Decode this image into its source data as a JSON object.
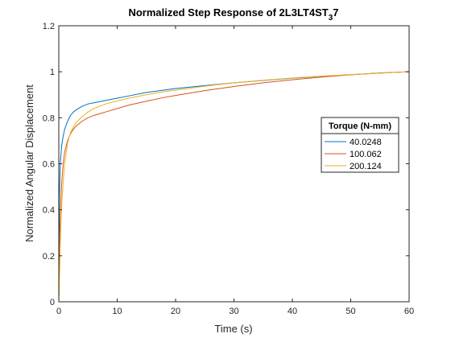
{
  "chart_data": {
    "type": "line",
    "title": "Normalized Step Response of 2L3LT4ST",
    "title_subscript": "3",
    "title_suffix": "7",
    "xlabel": "Time (s)",
    "ylabel": "Normalized Angular Displacement",
    "xlim": [
      0,
      60
    ],
    "ylim": [
      0,
      1.2
    ],
    "xticks": [
      0,
      10,
      20,
      30,
      40,
      50,
      60
    ],
    "yticks": [
      0,
      0.2,
      0.4,
      0.6,
      0.8,
      1,
      1.2
    ],
    "xtick_labels": [
      "0",
      "10",
      "20",
      "30",
      "40",
      "50",
      "60"
    ],
    "ytick_labels": [
      "0",
      "0.2",
      "0.4",
      "0.6",
      "0.8",
      "1",
      "1.2"
    ],
    "grid": false,
    "legend": {
      "title": "Torque (N-mm)",
      "placement": "right"
    },
    "series": [
      {
        "name": "40.0248",
        "color": "#0072BD",
        "x": [
          0,
          0.1,
          0.25,
          0.5,
          0.75,
          1,
          1.5,
          2,
          2.5,
          3,
          4,
          5,
          6,
          8,
          10,
          12,
          15,
          18,
          20,
          25,
          30,
          35,
          40,
          45,
          50,
          55,
          60
        ],
        "y": [
          0,
          0.45,
          0.6,
          0.68,
          0.72,
          0.75,
          0.785,
          0.81,
          0.825,
          0.835,
          0.85,
          0.86,
          0.865,
          0.875,
          0.885,
          0.895,
          0.91,
          0.92,
          0.927,
          0.94,
          0.952,
          0.962,
          0.972,
          0.98,
          0.987,
          0.995,
          1.0
        ]
      },
      {
        "name": "100.062",
        "color": "#D95319",
        "x": [
          0,
          0.1,
          0.25,
          0.5,
          0.75,
          1,
          1.5,
          2,
          2.5,
          3,
          4,
          5,
          6,
          8,
          10,
          12,
          15,
          18,
          20,
          25,
          30,
          35,
          40,
          45,
          50,
          55,
          60
        ],
        "y": [
          0,
          0.2,
          0.38,
          0.52,
          0.6,
          0.65,
          0.7,
          0.73,
          0.75,
          0.765,
          0.785,
          0.8,
          0.81,
          0.825,
          0.84,
          0.855,
          0.872,
          0.888,
          0.897,
          0.918,
          0.936,
          0.952,
          0.965,
          0.977,
          0.987,
          0.994,
          1.0
        ]
      },
      {
        "name": "200.124",
        "color": "#EDB120",
        "x": [
          0,
          0.1,
          0.25,
          0.5,
          0.75,
          1,
          1.5,
          2,
          2.5,
          3,
          4,
          5,
          6,
          8,
          10,
          12,
          15,
          18,
          20,
          25,
          30,
          35,
          40,
          45,
          50,
          55,
          60
        ],
        "y": [
          0,
          0.08,
          0.25,
          0.42,
          0.52,
          0.6,
          0.69,
          0.735,
          0.76,
          0.78,
          0.805,
          0.825,
          0.84,
          0.86,
          0.873,
          0.885,
          0.9,
          0.913,
          0.92,
          0.937,
          0.952,
          0.963,
          0.973,
          0.981,
          0.988,
          0.994,
          1.0
        ]
      }
    ]
  }
}
